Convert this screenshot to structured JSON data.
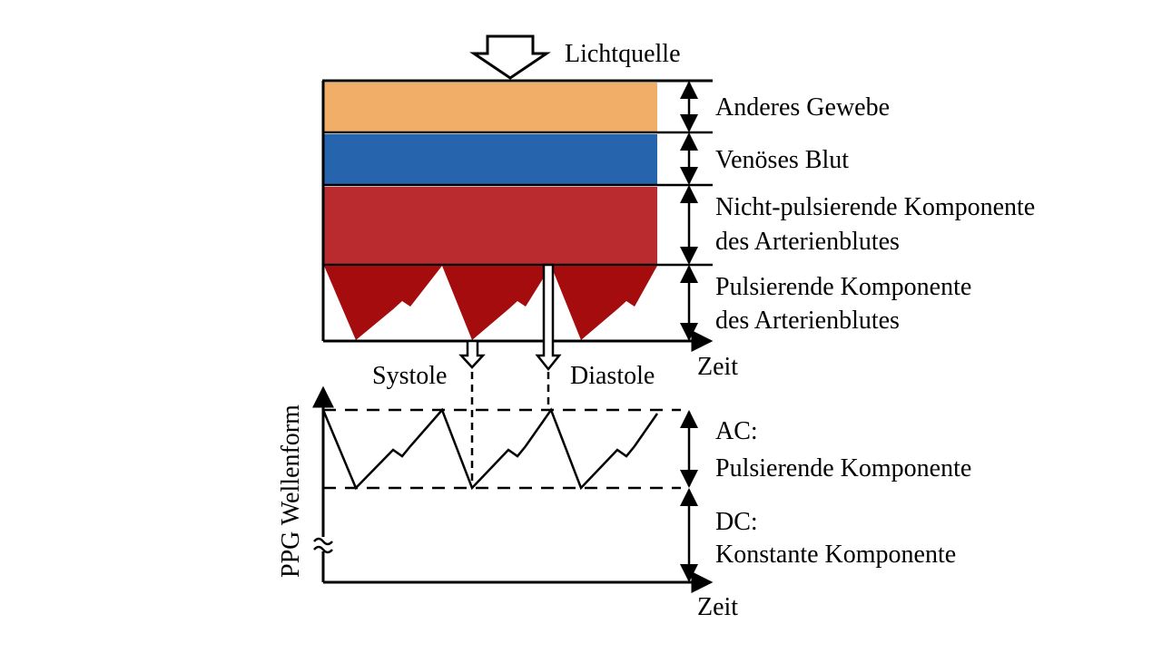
{
  "light_source": "Lichtquelle",
  "layers": [
    {
      "label_lines": [
        "Anderes Gewebe"
      ],
      "color": "#f0ae68"
    },
    {
      "label_lines": [
        "Venöses Blut"
      ],
      "color": "#2664ae"
    },
    {
      "label_lines": [
        "Nicht-pulsierende Komponente",
        "des Arterienblutes"
      ],
      "color": "#b92b2e"
    },
    {
      "label_lines": [
        "Pulsierende Komponente",
        "des Arterienblutes"
      ],
      "color": "#a50c0e"
    }
  ],
  "time_axis_label_top": "Zeit",
  "systole": "Systole",
  "diastole": "Diastole",
  "ppg_axis_label": "PPG Wellenform",
  "ac_label_lines": [
    "AC:",
    "Pulsierende Komponente"
  ],
  "dc_label_lines": [
    "DC:",
    "Konstante Komponente"
  ],
  "time_axis_label_bottom": "Zeit"
}
